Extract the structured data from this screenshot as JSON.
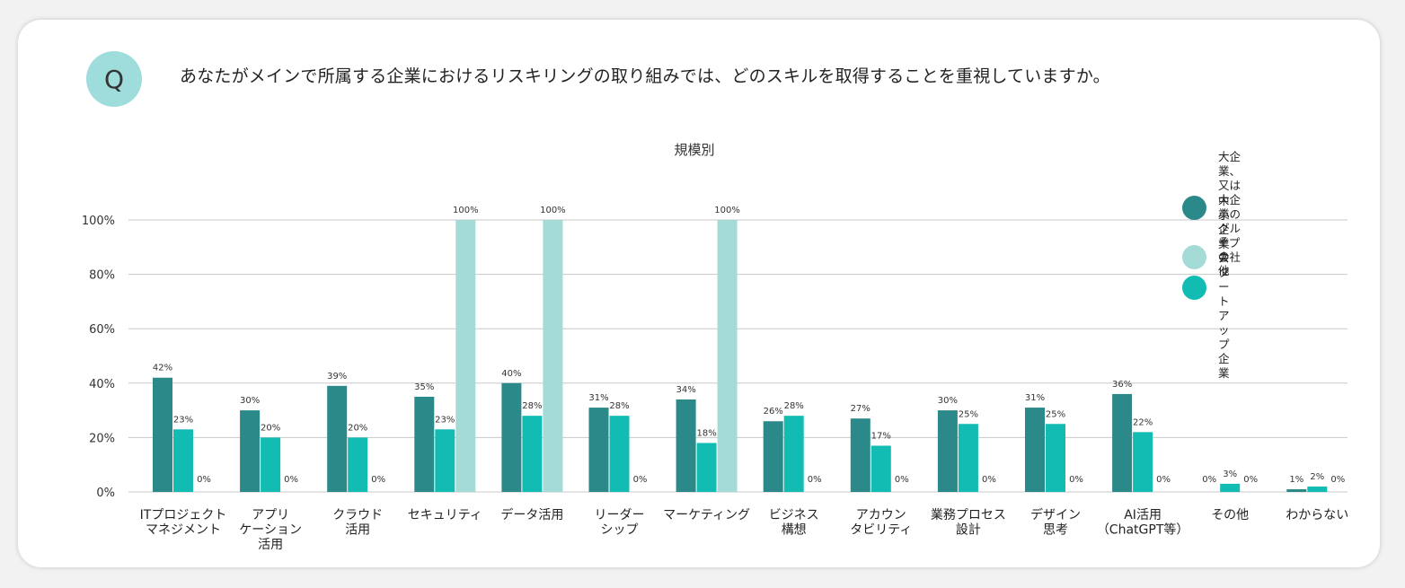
{
  "question": {
    "badge": "Q",
    "text": "あなたがメインで所属する企業におけるリスキリングの取り組みでは、どのスキルを取得することを重視していますか。"
  },
  "colors": {
    "large": "#2b8a89",
    "small": "#12bcb3",
    "other": "#a4dbd7",
    "grid": "#c8c8c8",
    "badge": "#9fdcdc"
  },
  "chart_data": {
    "type": "bar",
    "title": "規模別",
    "ylim": [
      0,
      100
    ],
    "yticks": [
      "0%",
      "20%",
      "40%",
      "60%",
      "80%",
      "100%"
    ],
    "categories": [
      "ITプロジェクト\nマネジメント",
      "アプリ\nケーション\n活用",
      "クラウド\n活用",
      "セキュリティ",
      "データ活用",
      "リーダー\nシップ",
      "マーケティング",
      "ビジネス\n構想",
      "アカウン\nタビリティ",
      "業務プロセス\n設計",
      "デザイン\n思考",
      "AI活用\n（ChatGPT等）",
      "その他",
      "わからない"
    ],
    "series": [
      {
        "name": "大企業、又は\n大企業のグループ会社",
        "color_key": "large",
        "values": [
          42,
          30,
          39,
          35,
          40,
          31,
          34,
          26,
          27,
          30,
          31,
          36,
          0,
          1
        ],
        "labels": [
          "42%",
          "30%",
          "39%",
          "35%",
          "40%",
          "31%",
          "34%",
          "26%",
          "27%",
          "30%",
          "31%",
          "36%",
          "0%",
          "1%"
        ]
      },
      {
        "name": "中小企業\nスタートアップ企業",
        "color_key": "small",
        "values": [
          23,
          20,
          20,
          23,
          28,
          28,
          18,
          28,
          17,
          25,
          25,
          22,
          3,
          2
        ],
        "labels": [
          "23%",
          "20%",
          "20%",
          "23%",
          "28%",
          "28%",
          "18%",
          "28%",
          "17%",
          "25%",
          "25%",
          "22%",
          "3%",
          "2%"
        ]
      },
      {
        "name": "その他",
        "color_key": "other",
        "values": [
          0,
          0,
          0,
          100,
          100,
          0,
          100,
          0,
          0,
          0,
          0,
          0,
          0,
          0
        ],
        "labels": [
          "0%",
          "0%",
          "0%",
          "100%",
          "100%",
          "0%",
          "100%",
          "0%",
          "0%",
          "0%",
          "0%",
          "0%",
          "0%",
          "0%"
        ]
      }
    ],
    "legend_position": "top-right",
    "grid": true
  }
}
